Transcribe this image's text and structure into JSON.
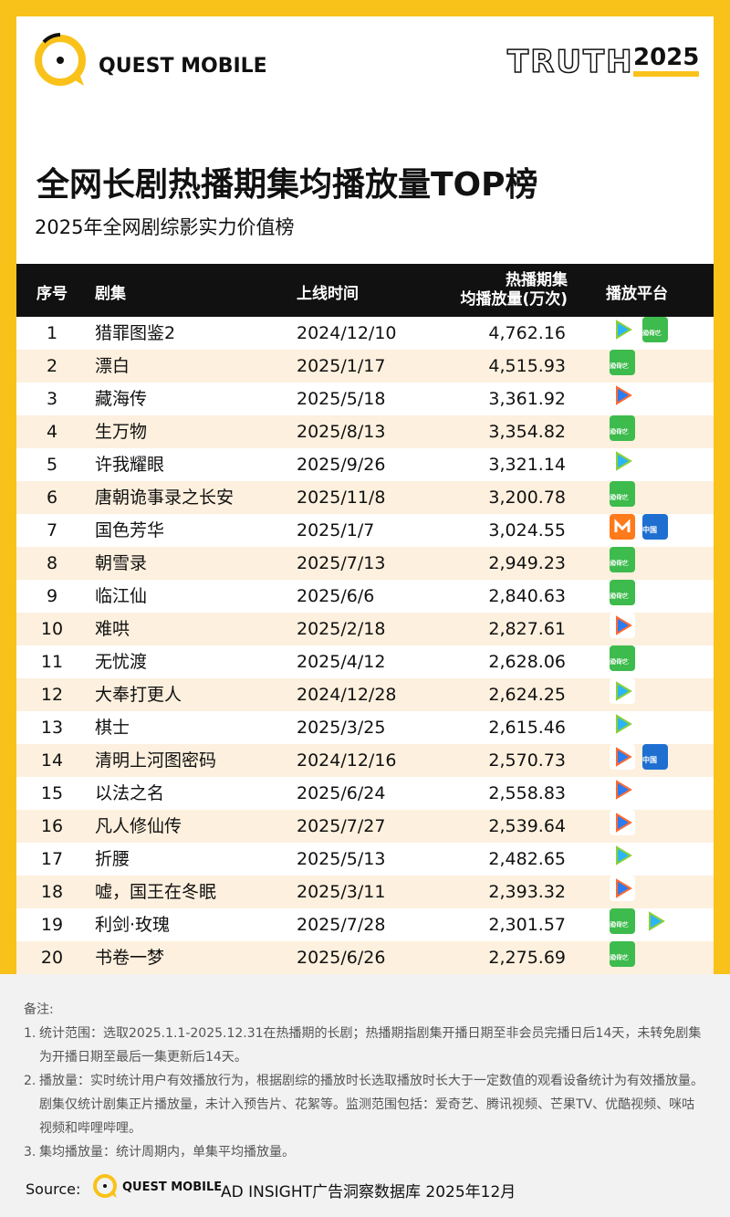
{
  "header": {
    "brand": "QUEST MOBILE",
    "badge_word": "TRUTH",
    "badge_year": "2025",
    "title": "全网长剧热播期集均播放量TOP榜",
    "subtitle": "2025年全网剧综影实力价值榜"
  },
  "table": {
    "columns": [
      "序号",
      "剧集",
      "上线时间",
      [
        "热播期集",
        "均播放量(万次)"
      ],
      "播放平台"
    ],
    "icon_text": [
      "iQIYI",
      "爱奇艺",
      "中国"
    ],
    "rows": [
      [
        "1",
        "猎罪图鉴2",
        "2024/12/10",
        "4,762.16"
      ],
      [
        "2",
        "漂白",
        "2025/1/17",
        "4,515.93"
      ],
      [
        "3",
        "藏海传",
        "2025/5/18",
        "3,361.92"
      ],
      [
        "4",
        "生万物",
        "2025/8/13",
        "3,354.82"
      ],
      [
        "5",
        "许我耀眼",
        "2025/9/26",
        "3,321.14"
      ],
      [
        "6",
        "唐朝诡事录之长安",
        "2025/11/8",
        "3,200.78"
      ],
      [
        "7",
        "国色芳华",
        "2025/1/7",
        "3,024.55"
      ],
      [
        "8",
        "朝雪录",
        "2025/7/13",
        "2,949.23"
      ],
      [
        "9",
        "临江仙",
        "2025/6/6",
        "2,840.63"
      ],
      [
        "10",
        "难哄",
        "2025/2/18",
        "2,827.61"
      ],
      [
        "11",
        "无忧渡",
        "2025/4/12",
        "2,628.06"
      ],
      [
        "12",
        "大奉打更人",
        "2024/12/28",
        "2,624.25"
      ],
      [
        "13",
        "棋士",
        "2025/3/25",
        "2,615.46"
      ],
      [
        "14",
        "清明上河图密码",
        "2024/12/16",
        "2,570.73"
      ],
      [
        "15",
        "以法之名",
        "2025/6/24",
        "2,558.83"
      ],
      [
        "16",
        "凡人修仙传",
        "2025/7/27",
        "2,539.64"
      ],
      [
        "17",
        "折腰",
        "2025/5/13",
        "2,482.65"
      ],
      [
        "18",
        "嘘，国王在冬眠",
        "2025/3/11",
        "2,393.32"
      ],
      [
        "19",
        "利剑·玫瑰",
        "2025/7/28",
        "2,301.57"
      ],
      [
        "20",
        "书卷一梦",
        "2025/6/26",
        "2,275.69"
      ]
    ]
  },
  "notes": {
    "title": "备注:",
    "items": [
      {
        "index": "1.",
        "text": "统计范围：选取2025.1.1-2025.12.31在热播期的长剧；热播期指剧集开播日期至非会员完播日后14天，未转免剧集为开播日期至最后一集更新后14天。"
      },
      {
        "index": "2.",
        "text": "播放量：实时统计用户有效播放行为，根据剧综的播放时长选取播放时长大于一定数值的观看设备统计为有效播放量。剧集仅统计剧集正片播放量，未计入预告片、花絮等。监测范围包括：爱奇艺、腾讯视频、芒果TV、优酷视频、咪咕视频和哔哩哔哩。"
      },
      {
        "index": "3.",
        "text": "集均播放量：统计周期内，单集平均播放量。"
      }
    ]
  },
  "source": {
    "label": "Source:",
    "brand": "QUEST MOBILE",
    "text": "AD INSIGHT广告洞察数据库 2025年12月"
  }
}
